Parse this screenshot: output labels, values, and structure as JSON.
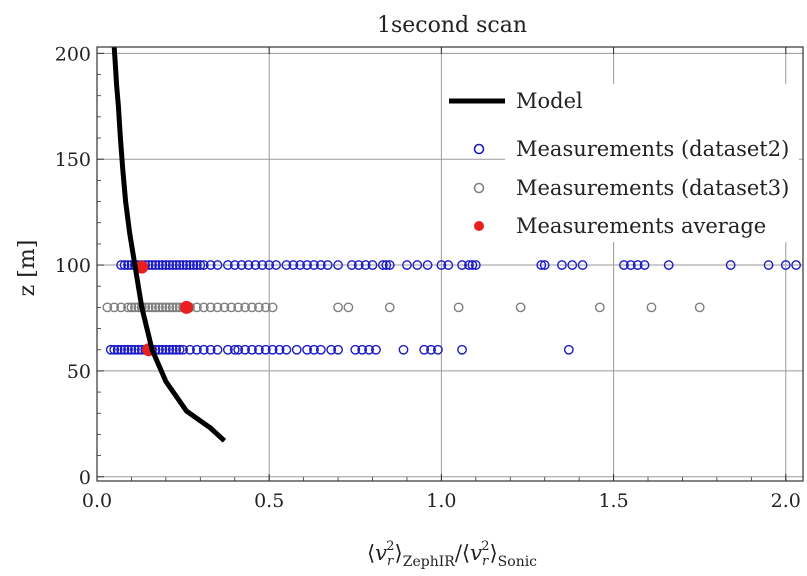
{
  "chart_data": {
    "type": "scatter",
    "title": "1second scan",
    "xlabel_parts": {
      "open": "⟨",
      "v": "v",
      "sub_r": "r",
      "sup": "2",
      "close": "⟩",
      "sub_a": "ZephIR",
      "slash": "/",
      "sub_b": "Sonic"
    },
    "ylabel": "z [m]",
    "xlim": [
      0.0,
      2.05
    ],
    "ylim": [
      -2,
      203
    ],
    "xticks": [
      0.0,
      0.5,
      1.0,
      1.5,
      2.0
    ],
    "xtick_labels": [
      "0.0",
      "0.5",
      "1.0",
      "1.5",
      "2.0"
    ],
    "yticks": [
      0,
      50,
      100,
      150,
      200
    ],
    "ytick_labels": [
      "0",
      "50",
      "100",
      "150",
      "200"
    ],
    "grid": true,
    "legend_position": "top-right",
    "series": [
      {
        "name": "Model",
        "kind": "line",
        "color": "#000000",
        "x": [
          0.37,
          0.33,
          0.26,
          0.2,
          0.16,
          0.13,
          0.11,
          0.095,
          0.083,
          0.075,
          0.068,
          0.062,
          0.057,
          0.053,
          0.05
        ],
        "y": [
          17,
          23,
          31,
          45,
          60,
          80,
          100,
          115,
          130,
          145,
          160,
          175,
          185,
          195,
          203
        ]
      },
      {
        "name": "Measurements (dataset2)",
        "kind": "open-circle",
        "color": "#1a1ac8",
        "groups": [
          {
            "z": 100,
            "x": [
              0.07,
              0.08,
              0.09,
              0.1,
              0.11,
              0.12,
              0.13,
              0.14,
              0.15,
              0.16,
              0.17,
              0.18,
              0.19,
              0.2,
              0.21,
              0.22,
              0.23,
              0.24,
              0.25,
              0.26,
              0.27,
              0.28,
              0.29,
              0.3,
              0.31,
              0.33,
              0.35,
              0.38,
              0.4,
              0.42,
              0.44,
              0.46,
              0.48,
              0.5,
              0.52,
              0.55,
              0.57,
              0.59,
              0.61,
              0.63,
              0.65,
              0.67,
              0.7,
              0.74,
              0.76,
              0.78,
              0.8,
              0.83,
              0.84,
              0.85,
              0.9,
              0.93,
              0.96,
              1.0,
              1.02,
              1.06,
              1.08,
              1.09,
              1.1,
              1.29,
              1.3,
              1.35,
              1.38,
              1.41,
              1.53,
              1.55,
              1.57,
              1.59,
              1.66,
              1.84,
              1.95,
              2.0,
              2.03
            ]
          },
          {
            "z": 60,
            "x": [
              0.04,
              0.05,
              0.06,
              0.07,
              0.08,
              0.09,
              0.1,
              0.11,
              0.12,
              0.13,
              0.14,
              0.15,
              0.16,
              0.17,
              0.18,
              0.19,
              0.2,
              0.21,
              0.22,
              0.23,
              0.24,
              0.25,
              0.27,
              0.29,
              0.31,
              0.33,
              0.35,
              0.38,
              0.4,
              0.41,
              0.43,
              0.45,
              0.47,
              0.49,
              0.51,
              0.53,
              0.55,
              0.58,
              0.61,
              0.63,
              0.65,
              0.68,
              0.7,
              0.75,
              0.77,
              0.79,
              0.81,
              0.89,
              0.95,
              0.97,
              0.99,
              1.06,
              1.37
            ]
          }
        ]
      },
      {
        "name": "Measurements (dataset3)",
        "kind": "open-circle",
        "color": "#808080",
        "groups": [
          {
            "z": 80,
            "x": [
              0.03,
              0.05,
              0.07,
              0.09,
              0.1,
              0.11,
              0.12,
              0.13,
              0.14,
              0.15,
              0.16,
              0.17,
              0.18,
              0.19,
              0.2,
              0.21,
              0.22,
              0.23,
              0.24,
              0.25,
              0.27,
              0.29,
              0.31,
              0.33,
              0.35,
              0.37,
              0.39,
              0.41,
              0.43,
              0.45,
              0.47,
              0.49,
              0.51,
              0.7,
              0.73,
              0.85,
              1.05,
              1.23,
              1.46,
              1.61,
              1.75
            ]
          }
        ]
      },
      {
        "name": "Measurements average",
        "kind": "filled-circle",
        "color": "#e82020",
        "points": [
          {
            "x": 0.13,
            "y": 99
          },
          {
            "x": 0.26,
            "y": 80
          },
          {
            "x": 0.15,
            "y": 60
          }
        ]
      }
    ]
  }
}
